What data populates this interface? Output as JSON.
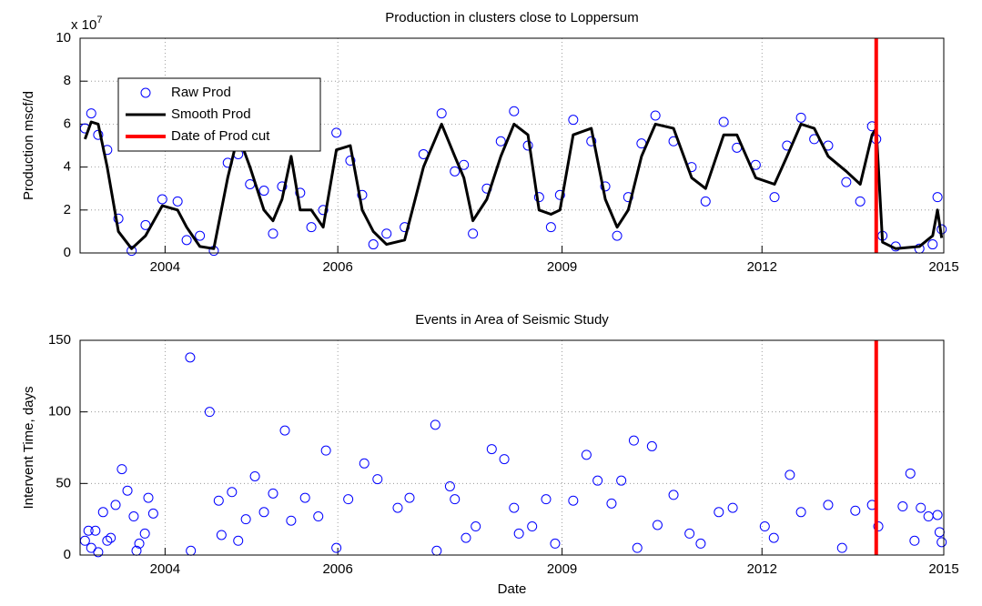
{
  "chart_data": [
    {
      "type": "scatter",
      "title": "Production in clusters close to Loppersum",
      "ylabel": "Production mscf/d",
      "y_multiplier": {
        "base": "x 10",
        "exponent": "7"
      },
      "xlim": [
        2002.6,
        2015.0
      ],
      "xticks": [
        {
          "value": 2003.82,
          "label": "2004"
        },
        {
          "value": 2006.3,
          "label": "2006"
        },
        {
          "value": 2009.52,
          "label": "2009"
        },
        {
          "value": 2012.39,
          "label": "2012"
        },
        2015
      ],
      "ylim": [
        0,
        10
      ],
      "yticks": [
        0,
        2,
        4,
        6,
        8,
        10
      ],
      "grid": true,
      "legend": "upper left",
      "series": [
        {
          "name": "Raw Prod",
          "color": "#0000ff",
          "style": "marker",
          "x": [
            2002.67,
            2002.76,
            2002.86,
            2002.99,
            2003.15,
            2003.34,
            2003.54,
            2003.78,
            2004.0,
            2004.13,
            2004.32,
            2004.52,
            2004.72,
            2004.87,
            2005.04,
            2005.24,
            2005.37,
            2005.5,
            2005.63,
            2005.76,
            2005.92,
            2006.09,
            2006.28,
            2006.48,
            2006.65,
            2006.81,
            2007.0,
            2007.26,
            2007.53,
            2007.79,
            2007.98,
            2008.11,
            2008.24,
            2008.44,
            2008.64,
            2008.83,
            2009.03,
            2009.19,
            2009.36,
            2009.49,
            2009.68,
            2009.94,
            2010.14,
            2010.31,
            2010.47,
            2010.66,
            2010.86,
            2011.12,
            2011.38,
            2011.58,
            2011.84,
            2012.03,
            2012.3,
            2012.57,
            2012.75,
            2012.95,
            2013.14,
            2013.34,
            2013.6,
            2013.8,
            2013.97,
            2014.03,
            2014.12,
            2014.31,
            2014.65,
            2014.84,
            2014.91,
            2014.97
          ],
          "values": [
            5.8,
            6.5,
            5.5,
            4.8,
            1.6,
            0.1,
            1.3,
            2.5,
            2.4,
            0.6,
            0.8,
            0.1,
            4.2,
            4.6,
            3.2,
            2.9,
            0.9,
            3.1,
            5.2,
            2.8,
            1.2,
            2.0,
            5.6,
            4.3,
            2.7,
            0.4,
            0.9,
            1.2,
            4.6,
            6.5,
            3.8,
            4.1,
            0.9,
            3.0,
            5.2,
            6.6,
            5.0,
            2.6,
            1.2,
            2.7,
            6.2,
            5.2,
            3.1,
            0.8,
            2.6,
            5.1,
            6.4,
            5.2,
            4.0,
            2.4,
            6.1,
            4.9,
            4.1,
            2.6,
            5.0,
            6.3,
            5.3,
            5.0,
            3.3,
            2.4,
            5.9,
            5.3,
            0.8,
            0.3,
            0.2,
            0.4,
            2.6,
            1.1
          ]
        },
        {
          "name": "Smooth Prod",
          "color": "#000000",
          "style": "line",
          "x": [
            2002.67,
            2002.76,
            2002.86,
            2002.99,
            2003.15,
            2003.34,
            2003.54,
            2003.78,
            2004.0,
            2004.13,
            2004.32,
            2004.52,
            2004.72,
            2004.87,
            2005.04,
            2005.24,
            2005.37,
            2005.5,
            2005.63,
            2005.76,
            2005.92,
            2006.09,
            2006.28,
            2006.48,
            2006.65,
            2006.81,
            2007.0,
            2007.26,
            2007.53,
            2007.79,
            2007.98,
            2008.11,
            2008.24,
            2008.44,
            2008.64,
            2008.83,
            2009.03,
            2009.19,
            2009.36,
            2009.49,
            2009.68,
            2009.94,
            2010.14,
            2010.31,
            2010.47,
            2010.66,
            2010.86,
            2011.12,
            2011.38,
            2011.58,
            2011.84,
            2012.03,
            2012.3,
            2012.57,
            2012.75,
            2012.95,
            2013.14,
            2013.34,
            2013.6,
            2013.8,
            2013.97,
            2014.03,
            2014.12,
            2014.31,
            2014.65,
            2014.84,
            2014.91,
            2014.97
          ],
          "values": [
            5.3,
            6.1,
            6.0,
            4.0,
            1.0,
            0.2,
            0.8,
            2.2,
            2.0,
            1.2,
            0.3,
            0.2,
            3.5,
            5.5,
            4.0,
            2.0,
            1.5,
            2.5,
            4.5,
            2.0,
            2.0,
            1.2,
            4.8,
            5.0,
            2.0,
            1.0,
            0.4,
            0.6,
            4.0,
            6.0,
            4.5,
            3.5,
            1.5,
            2.5,
            4.5,
            6.0,
            5.5,
            2.0,
            1.8,
            2.0,
            5.5,
            5.8,
            2.5,
            1.2,
            2.0,
            4.5,
            6.0,
            5.8,
            3.5,
            3.0,
            5.5,
            5.5,
            3.5,
            3.2,
            4.5,
            6.0,
            5.8,
            4.5,
            3.8,
            3.2,
            5.5,
            5.8,
            0.5,
            0.2,
            0.3,
            0.8,
            2.0,
            0.7
          ]
        },
        {
          "name": "Date of Prod cut",
          "color": "#ff0000",
          "style": "vline",
          "x": [
            2014.03
          ]
        }
      ]
    },
    {
      "type": "scatter",
      "title": "Events in Area of Seismic Study",
      "ylabel": "Intervent Time, days",
      "xlabel": "Date",
      "xlim": [
        2002.6,
        2015.0
      ],
      "xticks": [
        {
          "value": 2003.82,
          "label": "2004"
        },
        {
          "value": 2006.3,
          "label": "2006"
        },
        {
          "value": 2009.52,
          "label": "2009"
        },
        {
          "value": 2012.39,
          "label": "2012"
        },
        2015
      ],
      "ylim": [
        0,
        150
      ],
      "yticks": [
        0,
        50,
        100,
        150
      ],
      "grid": true,
      "series": [
        {
          "color": "#0000ff",
          "style": "marker",
          "x": [
            2002.67,
            2002.72,
            2002.76,
            2002.82,
            2002.86,
            2002.93,
            2002.99,
            2003.04,
            2003.11,
            2003.2,
            2003.28,
            2003.37,
            2003.41,
            2003.45,
            2003.53,
            2003.58,
            2003.65,
            2004.18,
            2004.46,
            2004.59,
            2004.63,
            2004.78,
            2004.87,
            2004.98,
            2005.11,
            2005.24,
            2005.37,
            2005.54,
            2005.63,
            2005.83,
            2006.02,
            2006.13,
            2006.45,
            2006.68,
            2006.87,
            2007.16,
            2007.33,
            2007.7,
            2007.91,
            2007.98,
            2008.14,
            2008.28,
            2008.51,
            2008.69,
            2008.83,
            2008.9,
            2009.09,
            2009.29,
            2009.68,
            2009.87,
            2010.03,
            2010.23,
            2010.37,
            2010.55,
            2010.81,
            2010.89,
            2011.12,
            2011.35,
            2011.77,
            2011.97,
            2012.43,
            2012.79,
            2012.95,
            2013.34,
            2013.54,
            2013.97,
            2014.06,
            2014.41,
            2014.52,
            2014.67,
            2014.78,
            2014.91,
            2014.97,
            2014.94,
            2013.73,
            2012.56,
            2011.51,
            2010.6,
            2009.42,
            2007.72,
            2006.28,
            2004.19,
            2014.58
          ],
          "values": [
            10,
            17,
            5,
            17,
            2,
            30,
            10,
            12,
            35,
            60,
            45,
            27,
            3,
            8,
            15,
            40,
            29,
            138,
            100,
            38,
            14,
            44,
            10,
            25,
            55,
            30,
            43,
            87,
            24,
            40,
            27,
            73,
            39,
            64,
            53,
            33,
            40,
            91,
            48,
            39,
            12,
            20,
            74,
            67,
            33,
            15,
            20,
            39,
            38,
            70,
            52,
            36,
            52,
            80,
            76,
            21,
            42,
            15,
            30,
            33,
            20,
            56,
            30,
            35,
            5,
            35,
            20,
            34,
            57,
            33,
            27,
            28,
            9,
            16,
            31,
            12,
            8,
            5,
            8,
            3,
            5,
            3,
            10
          ]
        },
        {
          "color": "#ff0000",
          "style": "vline",
          "x": [
            2014.03
          ]
        }
      ]
    }
  ]
}
